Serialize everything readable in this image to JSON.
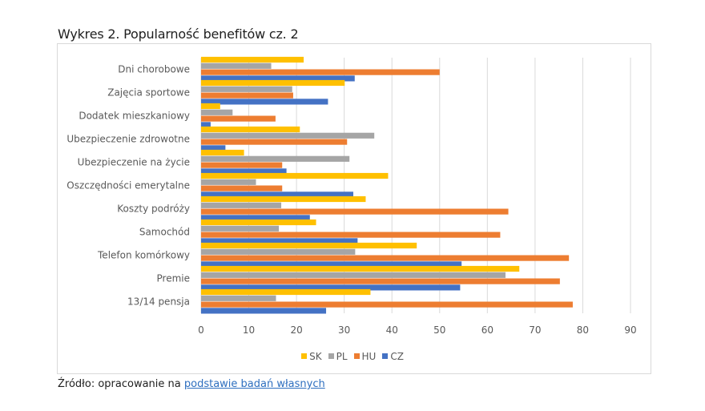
{
  "title": "Wykres 2. Popularność benefitów cz. 2",
  "source": {
    "prefix": "Źródło: opracowanie na ",
    "link_text": "podstawie badań własnych"
  },
  "chart_data": {
    "type": "bar",
    "orientation": "horizontal",
    "title": "Wykres 2. Popularność benefitów cz. 2",
    "xlabel": "",
    "ylabel": "",
    "xlim": [
      0,
      90
    ],
    "xticks": [
      0,
      10,
      20,
      30,
      40,
      50,
      60,
      70,
      80,
      90
    ],
    "grid": "vertical",
    "legend_position": "bottom",
    "categories": [
      "Dni chorobowe",
      "Zajęcia sportowe",
      "Dodatek mieszkaniowy",
      "Ubezpieczenie zdrowotne",
      "Ubezpieczenie na życie",
      "Oszczędności emerytalne",
      "Koszty podróży",
      "Samochód",
      "Telefon komórkowy",
      "Premie",
      "13/14 pensja"
    ],
    "series": [
      {
        "name": "SK",
        "color": "#ffc000",
        "values": [
          21.5,
          30.1,
          4.0,
          20.7,
          9.0,
          39.2,
          34.5,
          24.1,
          45.2,
          66.7,
          35.5
        ]
      },
      {
        "name": "PL",
        "color": "#a5a5a5",
        "values": [
          14.7,
          19.1,
          6.6,
          36.3,
          31.1,
          11.5,
          16.8,
          16.3,
          32.3,
          63.8,
          15.7
        ]
      },
      {
        "name": "HU",
        "color": "#ed7d31",
        "values": [
          50.0,
          19.3,
          15.6,
          30.6,
          17.0,
          17.0,
          64.4,
          62.7,
          77.1,
          75.2,
          77.9
        ]
      },
      {
        "name": "CZ",
        "color": "#4472c4",
        "values": [
          32.2,
          26.6,
          2.0,
          5.1,
          17.9,
          31.9,
          22.8,
          32.8,
          54.6,
          54.3,
          26.2
        ]
      }
    ]
  }
}
